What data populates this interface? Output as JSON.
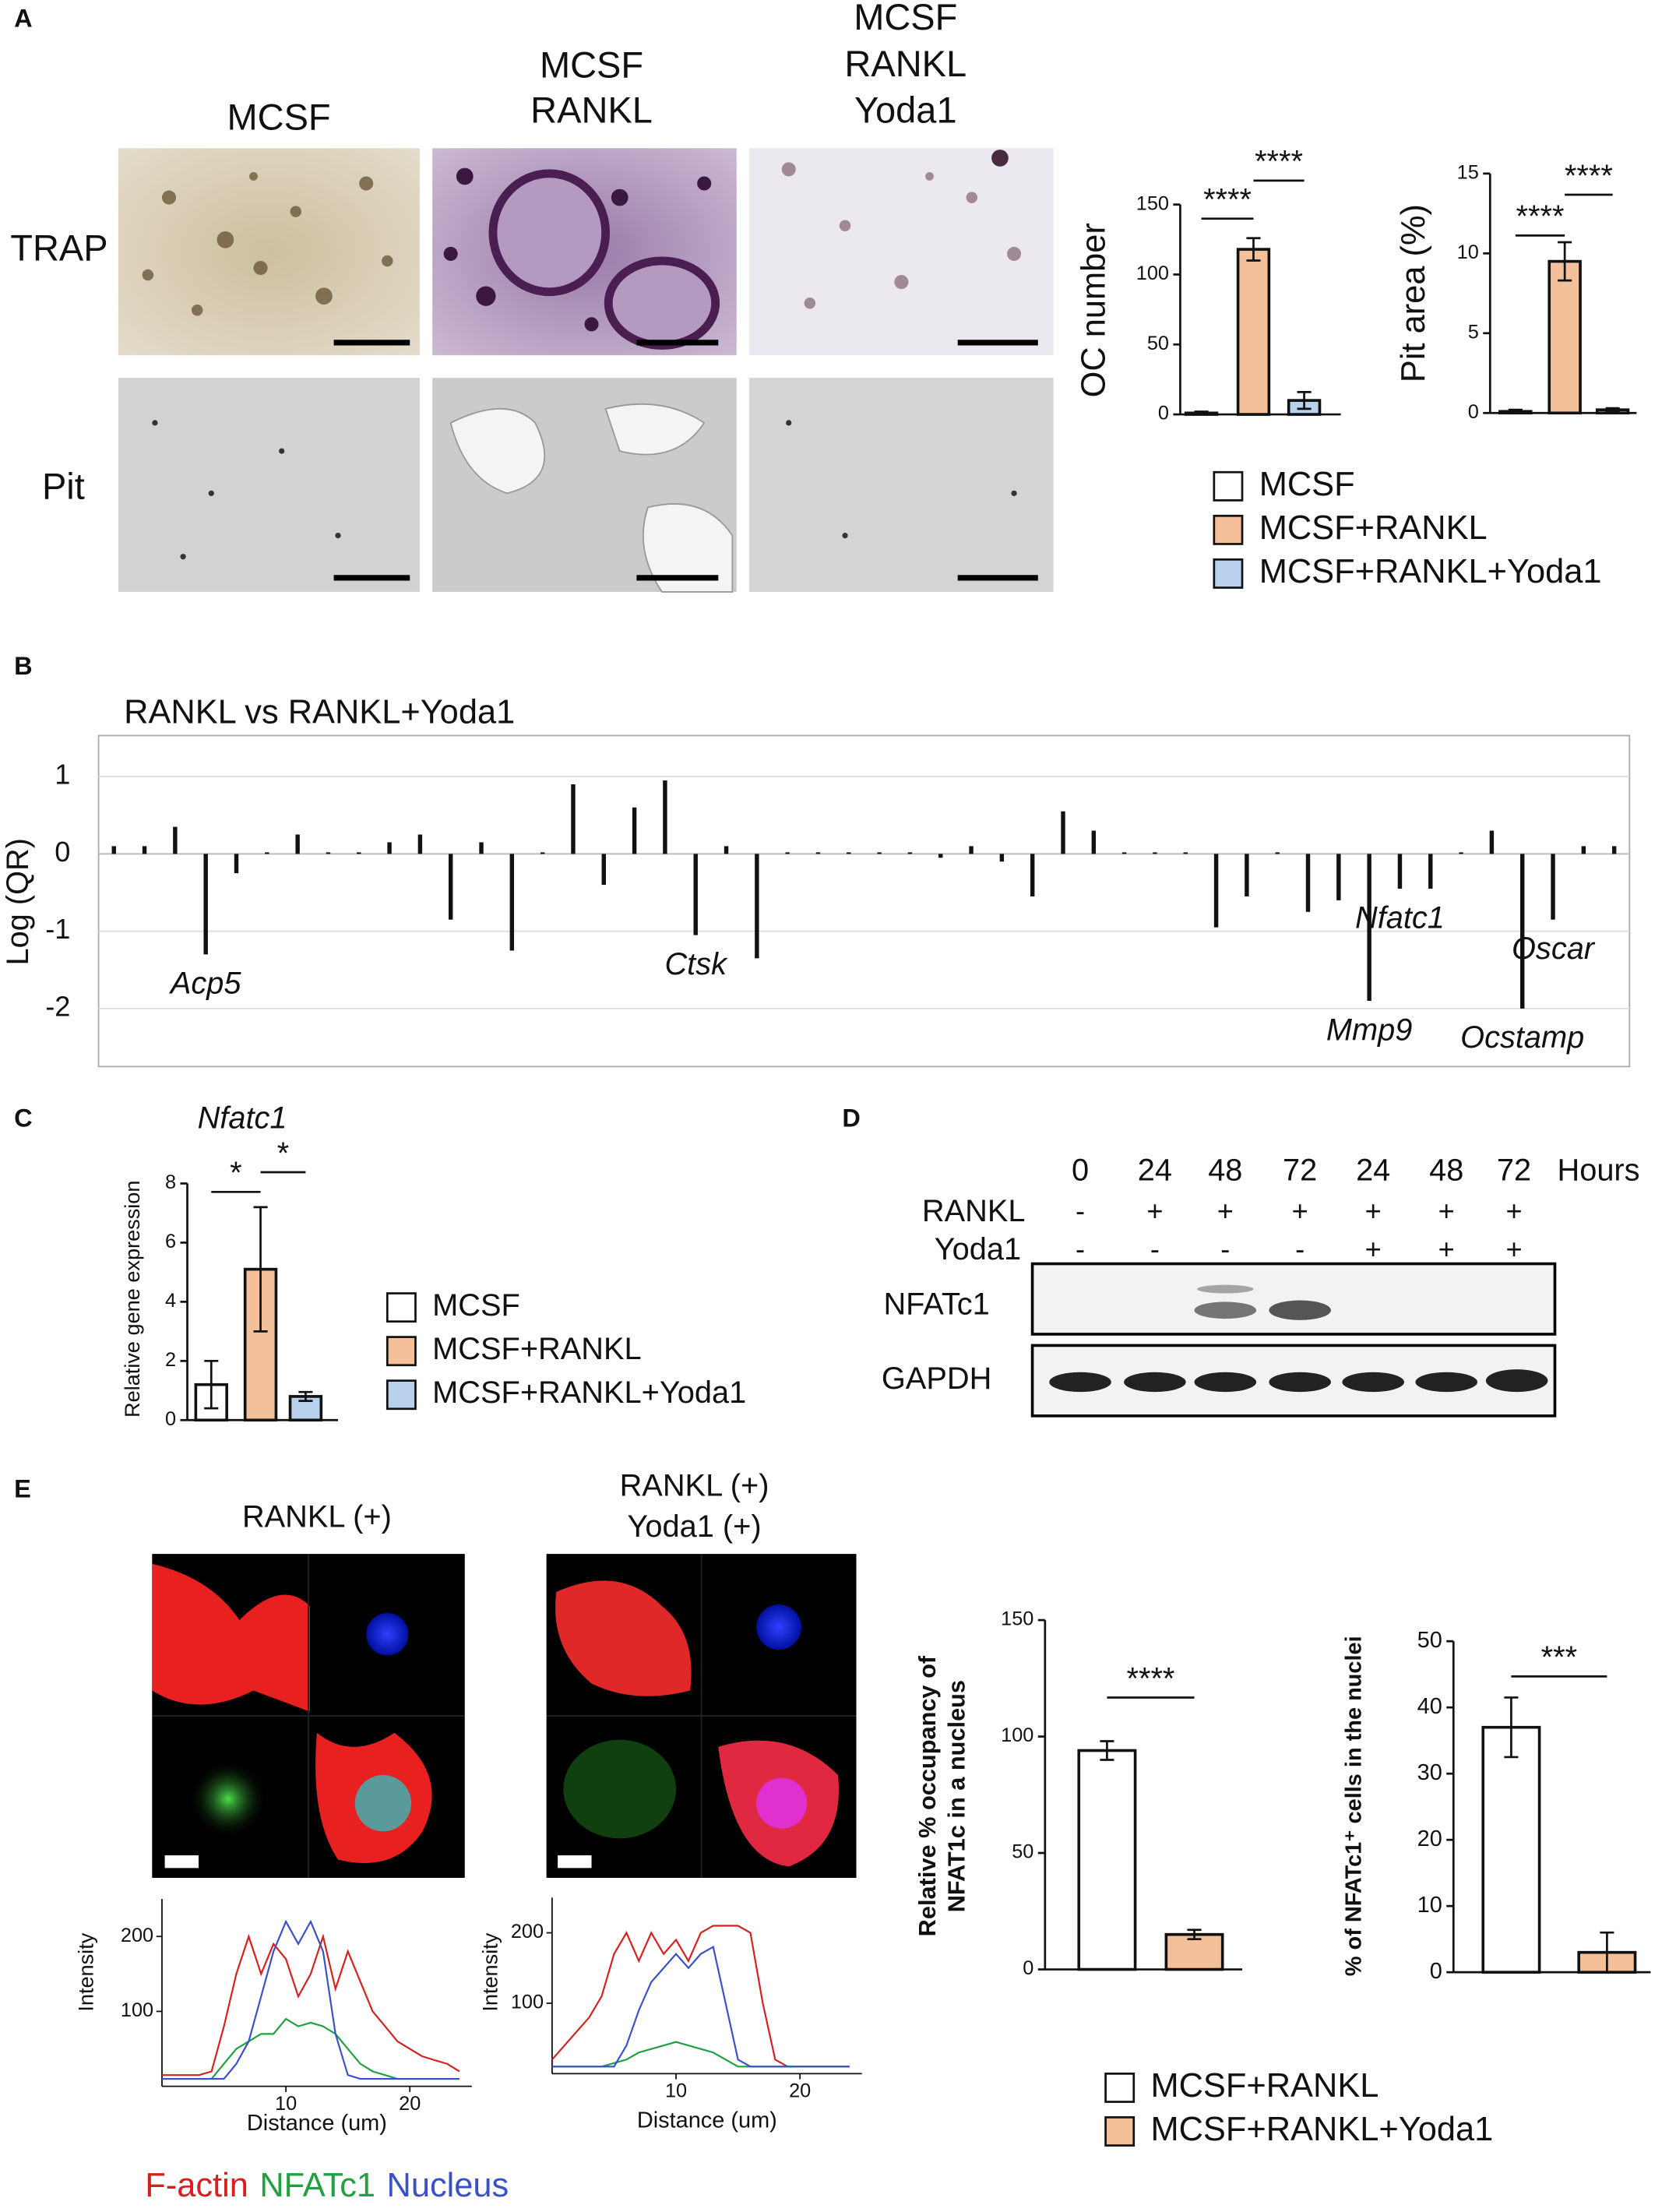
{
  "panel_labels": [
    "A",
    "B",
    "C",
    "D",
    "E"
  ],
  "panel_a": {
    "columns": [
      [
        "MCSF"
      ],
      [
        "MCSF",
        "RANKL"
      ],
      [
        "MCSF",
        "RANKL",
        "Yoda1"
      ]
    ],
    "rows": [
      "TRAP",
      "Pit"
    ]
  },
  "panel_d": {
    "times": [
      "0",
      "24",
      "48",
      "72",
      "24",
      "48",
      "72"
    ],
    "unit": "Hours",
    "rows": [
      {
        "label": "RANKL",
        "marks": [
          "-",
          "+",
          "+",
          "+",
          "+",
          "+",
          "+"
        ]
      },
      {
        "label": "Yoda1",
        "marks": [
          "-",
          "-",
          "-",
          "-",
          "+",
          "+",
          "+"
        ]
      }
    ],
    "blots": [
      "NFATc1",
      "GAPDH"
    ]
  },
  "panel_e": {
    "conditions": [
      [
        "RANKL (+)"
      ],
      [
        "RANKL (+)",
        "Yoda1 (+)"
      ]
    ]
  },
  "chart_data": [
    {
      "type": "bar",
      "ylabel": "OC number",
      "categories": [
        null
      ],
      "ylim": [
        0,
        150
      ],
      "yticks": [
        0,
        50,
        100,
        150
      ],
      "series": [
        {
          "name": "MCSF",
          "color": "#ffffff",
          "values": [
            1
          ],
          "errors": [
            1
          ]
        },
        {
          "name": "MCSF+RANKL",
          "color": "#f4c09a",
          "values": [
            118
          ],
          "errors": [
            8
          ]
        },
        {
          "name": "MCSF+RANKL+Yoda1",
          "color": "#b9d1ec",
          "values": [
            10
          ],
          "errors": [
            6
          ]
        }
      ],
      "annotations": [
        "****",
        "****"
      ]
    },
    {
      "type": "bar",
      "ylabel": "Pit area (%)",
      "categories": [
        null
      ],
      "ylim": [
        0,
        15
      ],
      "yticks": [
        0,
        5,
        10,
        15
      ],
      "series": [
        {
          "color": "#ffffff",
          "values": [
            0.1
          ],
          "errors": [
            0.1
          ]
        },
        {
          "color": "#f4c09a",
          "values": [
            9.5
          ],
          "errors": [
            1.2
          ]
        },
        {
          "color": "#b9d1ec",
          "values": [
            0.2
          ],
          "errors": [
            0.1
          ]
        }
      ],
      "annotations": [
        "****",
        "****"
      ]
    },
    {
      "type": "bar",
      "title": "RANKL vs RANKL+Yoda1",
      "ylabel": "Log (QR)",
      "categories": [
        null,
        null,
        null,
        "Acp5",
        null,
        null,
        null,
        null,
        null,
        null,
        null,
        null,
        null,
        null,
        null,
        null,
        null,
        null,
        null,
        "Ctsk",
        null,
        null,
        null,
        null,
        null,
        null,
        null,
        null,
        null,
        null,
        null,
        null,
        null,
        null,
        null,
        null,
        null,
        null,
        null,
        null,
        null,
        "Mmp9",
        "Nfatc1",
        null,
        null,
        null,
        "Ocstamp",
        "Oscar",
        null,
        null
      ],
      "values": [
        0.1,
        0.1,
        0.35,
        -1.3,
        -0.25,
        0.02,
        0.25,
        0.02,
        0.02,
        0.15,
        0.25,
        -0.85,
        0.15,
        -1.25,
        0.02,
        0.9,
        -0.4,
        0.6,
        0.95,
        -1.05,
        0.1,
        -1.35,
        0.02,
        0.02,
        0.02,
        0.02,
        0.02,
        -0.05,
        0.1,
        -0.1,
        -0.55,
        0.55,
        0.3,
        0.02,
        0.02,
        0.02,
        -0.95,
        -0.55,
        0.02,
        -0.75,
        -0.6,
        -1.9,
        -0.45,
        -0.45,
        0.02,
        0.3,
        -2.0,
        -0.85,
        0.1,
        0.1
      ],
      "color": "#111111",
      "ylim": [
        -2.75,
        1.53
      ],
      "yticks": [
        1,
        0,
        -1,
        -2
      ],
      "grid": true
    },
    {
      "type": "bar",
      "title": "Nfatc1",
      "ylabel": "Relative gene expression",
      "categories": [
        null
      ],
      "ylim": [
        0,
        8
      ],
      "yticks": [
        0,
        2,
        4,
        6,
        8
      ],
      "series": [
        {
          "name": "MCSF",
          "color": "#ffffff",
          "values": [
            1.2
          ],
          "errors": [
            0.8
          ]
        },
        {
          "name": "MCSF+RANKL",
          "color": "#f4c09a",
          "values": [
            5.1
          ],
          "errors": [
            2.1
          ]
        },
        {
          "name": "MCSF+RANKL+Yoda1",
          "color": "#b9d1ec",
          "values": [
            0.8
          ],
          "errors": [
            0.15
          ]
        }
      ],
      "annotations": [
        "*",
        "*"
      ]
    },
    {
      "type": "bar",
      "ylabel": [
        "Relative % occupancy of",
        "NFAT1c in a nucleus"
      ],
      "categories": [
        null
      ],
      "ylim": [
        0,
        150
      ],
      "yticks": [
        0,
        50,
        100,
        150
      ],
      "series": [
        {
          "name": "MCSF+RANKL",
          "color": "#ffffff",
          "values": [
            94
          ],
          "errors": [
            4
          ]
        },
        {
          "name": "MCSF+RANKL+Yoda1",
          "color": "#f4c09a",
          "values": [
            15
          ],
          "errors": [
            2
          ]
        }
      ],
      "annotations": [
        "****"
      ]
    },
    {
      "type": "bar",
      "ylabel": "% of NFATc1⁺ cells in the nuclei",
      "categories": [
        null
      ],
      "ylim": [
        0,
        50
      ],
      "yticks": [
        0,
        10,
        20,
        30,
        40,
        50
      ],
      "series": [
        {
          "color": "#ffffff",
          "values": [
            37
          ],
          "errors": [
            4.5
          ]
        },
        {
          "color": "#f4c09a",
          "values": [
            3
          ],
          "errors": [
            3
          ]
        }
      ],
      "annotations": [
        "***"
      ]
    },
    {
      "type": "line",
      "xlabel": "Distance (um)",
      "ylabel": "Intensity",
      "x": [
        0,
        1,
        2,
        3,
        4,
        5,
        6,
        7,
        8,
        9,
        10,
        11,
        12,
        13,
        14,
        15,
        16,
        17,
        18,
        19,
        20,
        21,
        22,
        23,
        24
      ],
      "xlim": [
        0,
        25
      ],
      "xticks": [
        10,
        20
      ],
      "ylim": [
        0,
        250
      ],
      "yticks": [
        100,
        200
      ],
      "series": [
        {
          "name": "F-actin",
          "color": "#d42020",
          "values": [
            15,
            15,
            15,
            15,
            20,
            80,
            150,
            200,
            150,
            190,
            170,
            120,
            150,
            200,
            130,
            180,
            140,
            100,
            80,
            60,
            50,
            40,
            35,
            30,
            20
          ]
        },
        {
          "name": "NFATc1",
          "color": "#20a040",
          "values": [
            10,
            10,
            10,
            10,
            10,
            30,
            50,
            60,
            70,
            70,
            90,
            80,
            85,
            80,
            70,
            50,
            30,
            20,
            15,
            10,
            10,
            10,
            10,
            10,
            10
          ]
        },
        {
          "name": "Nucleus",
          "color": "#3a50c8",
          "values": [
            10,
            10,
            10,
            10,
            10,
            10,
            30,
            60,
            120,
            180,
            220,
            190,
            220,
            180,
            70,
            15,
            10,
            10,
            10,
            10,
            10,
            10,
            10,
            10,
            10
          ]
        }
      ]
    },
    {
      "type": "line",
      "xlabel": "Distance (um)",
      "ylabel": "Intensity",
      "x": [
        0,
        1,
        2,
        3,
        4,
        5,
        6,
        7,
        8,
        9,
        10,
        11,
        12,
        13,
        14,
        15,
        16,
        17,
        18,
        19,
        20,
        21,
        22,
        23,
        24
      ],
      "xlim": [
        0,
        25
      ],
      "xticks": [
        10,
        20
      ],
      "ylim": [
        0,
        250
      ],
      "yticks": [
        100,
        200
      ],
      "series": [
        {
          "color": "#d42020",
          "values": [
            20,
            40,
            60,
            80,
            110,
            170,
            200,
            160,
            200,
            170,
            190,
            160,
            200,
            210,
            210,
            210,
            200,
            100,
            20,
            10,
            10,
            10,
            10,
            10,
            10
          ]
        },
        {
          "color": "#20a040",
          "values": [
            10,
            10,
            10,
            10,
            10,
            15,
            20,
            30,
            35,
            40,
            45,
            40,
            35,
            30,
            20,
            10,
            10,
            10,
            10,
            10,
            10,
            10,
            10,
            10,
            10
          ]
        },
        {
          "color": "#3a50c8",
          "values": [
            10,
            10,
            10,
            10,
            10,
            10,
            40,
            90,
            130,
            150,
            170,
            150,
            170,
            180,
            100,
            20,
            10,
            10,
            10,
            10,
            10,
            10,
            10,
            10,
            10
          ]
        }
      ]
    }
  ]
}
